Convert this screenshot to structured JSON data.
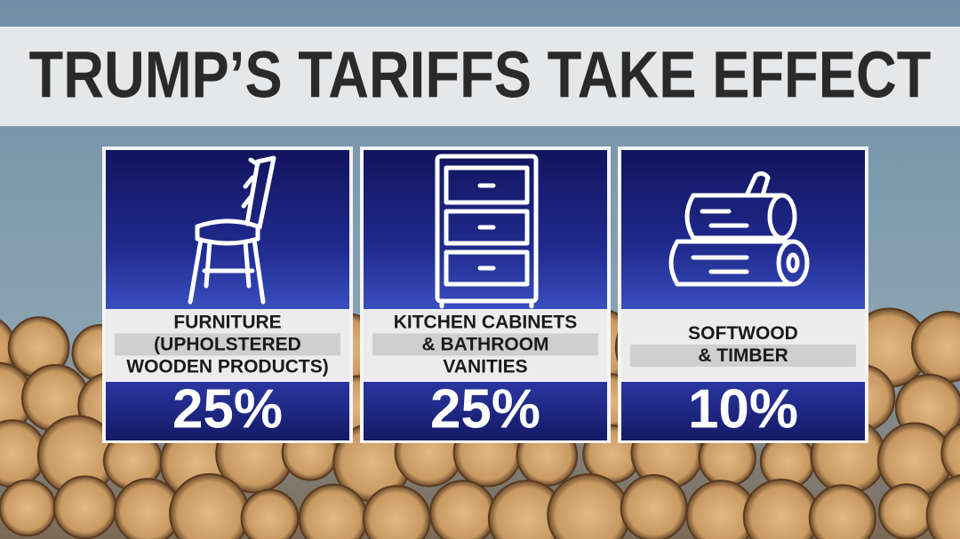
{
  "header": {
    "title": "TRUMP’S TARIFFS TAKE EFFECT"
  },
  "cards": [
    {
      "label": [
        "FURNITURE",
        "(UPHOLSTERED",
        "WOODEN PRODUCTS)"
      ],
      "value": "25%"
    },
    {
      "label": [
        "KITCHEN CABINETS",
        "& BATHROOM",
        "VANITIES"
      ],
      "value": "25%"
    },
    {
      "label": [
        "SOFTWOOD",
        "& TIMBER"
      ],
      "value": "10%"
    }
  ]
}
